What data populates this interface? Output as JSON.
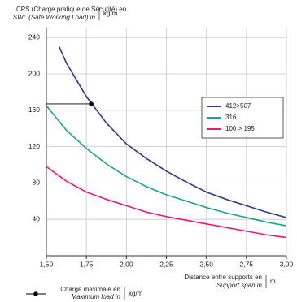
{
  "chart_data": {
    "type": "line",
    "y_label": [
      "CPS (Charge pratique de Sécurité) en",
      "SWL (Safe Working Load) in"
    ],
    "y_unit": "kg/m",
    "x_label": [
      "Distance entre supports en",
      "Support span in"
    ],
    "x_unit": "m",
    "x": [
      1.5,
      1.625,
      1.75,
      1.875,
      2.0,
      2.125,
      2.25,
      2.375,
      2.5,
      2.625,
      2.75,
      2.875,
      3.0
    ],
    "series": [
      {
        "name": "412>507",
        "color": "#2b3990",
        "x": [
          1.58,
          1.625,
          1.75,
          1.875,
          2.0,
          2.125,
          2.25,
          2.375,
          2.5,
          2.625,
          2.75,
          2.875,
          3.0
        ],
        "values": [
          230,
          212,
          175,
          146,
          123,
          107,
          93,
          81,
          70,
          62,
          55,
          48,
          42
        ]
      },
      {
        "name": "316",
        "color": "#1aa58a",
        "values": [
          165,
          138,
          118,
          101,
          87,
          76,
          67,
          60,
          53,
          47,
          42,
          37,
          33
        ]
      },
      {
        "name": "100 > 195",
        "color": "#e8197a",
        "values": [
          98,
          82,
          70,
          62,
          55,
          48,
          43,
          39,
          35,
          31,
          27,
          23,
          20
        ]
      }
    ],
    "marker": {
      "x": 1.78,
      "y": 167,
      "label": [
        "Charge maximale en",
        "Maximum load in"
      ],
      "unit": "kg/m"
    },
    "xlim": [
      1.5,
      3.0
    ],
    "xticks": [
      {
        "value": 1.5,
        "label": "1,50"
      },
      {
        "value": 1.75,
        "label": "1,75"
      },
      {
        "value": 2.0,
        "label": "2,00"
      },
      {
        "value": 2.25,
        "label": "2,25"
      },
      {
        "value": 2.5,
        "label": "2,50"
      },
      {
        "value": 2.75,
        "label": "2,75"
      },
      {
        "value": 3.0,
        "label": "3,00"
      }
    ],
    "ylim": [
      0,
      250
    ],
    "yticks": [
      40,
      80,
      120,
      160,
      200,
      240
    ],
    "grid": true
  }
}
